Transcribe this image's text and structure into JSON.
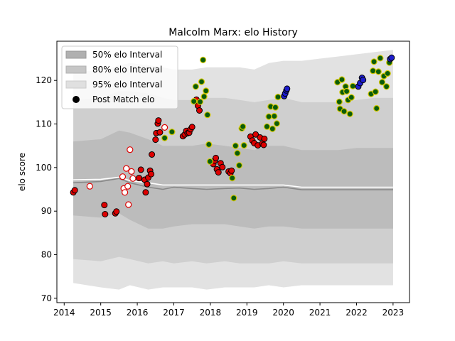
{
  "chart_data": {
    "type": "scatter",
    "title": "Malcolm Marx: elo History",
    "xlabel": "",
    "ylabel": "elo score",
    "xlim": [
      2013.8,
      2023.45
    ],
    "ylim": [
      69,
      129
    ],
    "x_ticks": [
      2014,
      2015,
      2016,
      2017,
      2018,
      2019,
      2020,
      2021,
      2022,
      2023
    ],
    "y_ticks": [
      70,
      80,
      90,
      100,
      110,
      120
    ],
    "legend": {
      "placement": "top-left",
      "entries": [
        "50% elo Interval",
        "80% elo Interval",
        "95% elo Interval",
        "Post Match elo"
      ]
    },
    "colors": {
      "band95": "#e2e2e2",
      "band80": "#cfcfcf",
      "band50": "#bcbcbc",
      "mean_line": "#ffffff",
      "median_line": "#888888",
      "red": "#dd0000",
      "green": "#0a5c0a",
      "green_edge": "#d4c800",
      "blue": "#1c1ccc",
      "open_edge": "#dd0000"
    },
    "bands": {
      "x": [
        2014.25,
        2015.0,
        2015.5,
        2015.8,
        2016.3,
        2016.7,
        2017.0,
        2017.5,
        2017.9,
        2018.4,
        2018.8,
        2019.2,
        2019.6,
        2020.0,
        2020.5,
        2021.0,
        2021.5,
        2022.0,
        2022.5,
        2023.0
      ],
      "p95_hi": [
        122.5,
        122.0,
        123.5,
        124.0,
        123.5,
        123.0,
        122.5,
        122.5,
        123.0,
        123.0,
        123.0,
        122.5,
        124.0,
        124.5,
        124.5,
        125.0,
        125.5,
        126.0,
        126.5,
        127.0
      ],
      "p80_hi": [
        115.5,
        116.0,
        117.5,
        117.5,
        117.0,
        116.0,
        115.5,
        115.5,
        116.0,
        116.0,
        115.5,
        115.0,
        115.5,
        116.0,
        115.0,
        115.0,
        115.0,
        115.5,
        116.0,
        116.0
      ],
      "p50_hi": [
        106.0,
        106.5,
        108.5,
        108.0,
        106.5,
        105.0,
        105.0,
        105.0,
        105.5,
        105.0,
        104.5,
        104.0,
        105.0,
        105.0,
        104.0,
        104.0,
        104.0,
        104.5,
        104.5,
        104.5
      ],
      "p50_lo": [
        89.0,
        88.5,
        89.5,
        88.0,
        86.0,
        86.0,
        86.5,
        87.0,
        87.0,
        87.0,
        86.5,
        86.0,
        86.5,
        86.5,
        86.0,
        86.0,
        86.0,
        86.0,
        86.0,
        86.0
      ],
      "p80_lo": [
        79.0,
        78.5,
        79.5,
        79.0,
        78.0,
        78.5,
        78.0,
        78.5,
        78.0,
        78.5,
        78.0,
        78.0,
        78.0,
        78.5,
        78.0,
        78.0,
        78.0,
        78.0,
        78.0,
        78.0
      ],
      "p95_lo": [
        73.5,
        72.5,
        72.0,
        73.0,
        72.0,
        72.5,
        72.5,
        72.5,
        72.0,
        72.5,
        72.5,
        72.5,
        73.0,
        72.5,
        73.0,
        73.0,
        73.0,
        73.0,
        73.0,
        73.0
      ],
      "mean": [
        97.2,
        97.3,
        97.8,
        97.0,
        96.5,
        96.0,
        96.0,
        96.0,
        96.0,
        96.0,
        96.0,
        96.0,
        96.0,
        96.0,
        95.5,
        95.5,
        95.5,
        95.5,
        95.5,
        95.5
      ],
      "median": [
        96.5,
        96.8,
        97.5,
        96.5,
        95.5,
        95.0,
        95.5,
        95.2,
        95.0,
        95.2,
        95.3,
        95.0,
        95.2,
        95.5,
        94.9,
        94.9,
        94.9,
        94.9,
        94.9,
        94.9
      ]
    },
    "series": [
      {
        "name": "Post Match elo",
        "style": "red",
        "points": [
          [
            2014.25,
            94.3
          ],
          [
            2014.29,
            94.8
          ],
          [
            2015.1,
            91.4
          ],
          [
            2015.12,
            89.3
          ],
          [
            2015.4,
            89.5
          ],
          [
            2015.43,
            89.9
          ],
          [
            2016.05,
            97.6
          ],
          [
            2016.1,
            99.5
          ],
          [
            2016.2,
            97.2
          ],
          [
            2016.23,
            94.3
          ],
          [
            2016.27,
            96.2
          ],
          [
            2016.3,
            97.7
          ],
          [
            2016.35,
            99.3
          ],
          [
            2016.38,
            98.5
          ],
          [
            2016.4,
            103.0
          ],
          [
            2016.5,
            106.4
          ],
          [
            2016.52,
            107.9
          ],
          [
            2016.56,
            110.1
          ],
          [
            2016.58,
            110.8
          ],
          [
            2016.62,
            108.1
          ],
          [
            2017.25,
            107.2
          ],
          [
            2017.3,
            107.6
          ],
          [
            2017.34,
            108.4
          ],
          [
            2017.38,
            107.9
          ],
          [
            2017.42,
            108.0
          ],
          [
            2017.46,
            108.8
          ],
          [
            2017.5,
            109.3
          ],
          [
            2017.62,
            115.6
          ],
          [
            2017.66,
            114.2
          ],
          [
            2017.7,
            113.1
          ],
          [
            2018.08,
            100.8
          ],
          [
            2018.12,
            101.6
          ],
          [
            2018.15,
            102.2
          ],
          [
            2018.18,
            99.6
          ],
          [
            2018.22,
            98.9
          ],
          [
            2018.28,
            101.0
          ],
          [
            2018.33,
            100.1
          ],
          [
            2018.5,
            99.1
          ],
          [
            2018.55,
            98.7
          ],
          [
            2018.58,
            99.3
          ],
          [
            2019.1,
            107.1
          ],
          [
            2019.15,
            106.2
          ],
          [
            2019.2,
            105.6
          ],
          [
            2019.24,
            107.6
          ],
          [
            2019.3,
            105.1
          ],
          [
            2019.36,
            106.9
          ],
          [
            2019.42,
            105.5
          ],
          [
            2019.46,
            105.2
          ],
          [
            2019.48,
            106.6
          ]
        ]
      },
      {
        "name": "",
        "style": "open",
        "points": [
          [
            2014.7,
            95.7
          ],
          [
            2015.6,
            97.9
          ],
          [
            2015.63,
            95.2
          ],
          [
            2015.66,
            94.3
          ],
          [
            2015.7,
            99.8
          ],
          [
            2015.74,
            95.7
          ],
          [
            2015.76,
            91.5
          ],
          [
            2015.8,
            104.1
          ],
          [
            2015.84,
            99.1
          ],
          [
            2015.88,
            97.5
          ],
          [
            2016.75,
            109.2
          ]
        ]
      },
      {
        "name": "",
        "style": "green",
        "points": [
          [
            2016.75,
            106.8
          ],
          [
            2016.95,
            108.2
          ],
          [
            2017.55,
            115.2
          ],
          [
            2017.6,
            118.6
          ],
          [
            2017.72,
            115.1
          ],
          [
            2017.76,
            119.7
          ],
          [
            2017.8,
            124.7
          ],
          [
            2017.83,
            116.3
          ],
          [
            2017.88,
            117.6
          ],
          [
            2017.92,
            112.1
          ],
          [
            2017.96,
            105.3
          ],
          [
            2017.99,
            101.4
          ],
          [
            2018.6,
            97.6
          ],
          [
            2018.64,
            93.0
          ],
          [
            2018.69,
            105.0
          ],
          [
            2018.74,
            103.3
          ],
          [
            2018.79,
            100.5
          ],
          [
            2018.86,
            109.0
          ],
          [
            2018.89,
            109.4
          ],
          [
            2018.92,
            105.1
          ],
          [
            2019.55,
            109.4
          ],
          [
            2019.6,
            111.7
          ],
          [
            2019.65,
            114.0
          ],
          [
            2019.7,
            108.9
          ],
          [
            2019.75,
            111.8
          ],
          [
            2019.78,
            113.8
          ],
          [
            2019.82,
            110.1
          ],
          [
            2019.85,
            116.2
          ],
          [
            2021.48,
            119.6
          ],
          [
            2021.53,
            115.1
          ],
          [
            2021.55,
            113.5
          ],
          [
            2021.6,
            120.2
          ],
          [
            2021.62,
            117.3
          ],
          [
            2021.66,
            112.9
          ],
          [
            2021.7,
            118.6
          ],
          [
            2021.73,
            117.5
          ],
          [
            2021.77,
            115.5
          ],
          [
            2021.82,
            112.3
          ],
          [
            2021.86,
            116.1
          ],
          [
            2021.9,
            118.7
          ],
          [
            2022.4,
            116.9
          ],
          [
            2022.45,
            122.2
          ],
          [
            2022.48,
            124.3
          ],
          [
            2022.52,
            117.4
          ],
          [
            2022.55,
            113.6
          ],
          [
            2022.6,
            122.0
          ],
          [
            2022.65,
            125.1
          ],
          [
            2022.7,
            119.6
          ],
          [
            2022.75,
            121.0
          ],
          [
            2022.82,
            118.6
          ],
          [
            2022.85,
            121.6
          ],
          [
            2022.9,
            124.1
          ]
        ]
      },
      {
        "name": "",
        "style": "blue",
        "points": [
          [
            2020.02,
            116.4
          ],
          [
            2020.05,
            117.0
          ],
          [
            2020.08,
            117.7
          ],
          [
            2020.1,
            118.1
          ],
          [
            2022.05,
            118.6
          ],
          [
            2022.1,
            119.4
          ],
          [
            2022.15,
            120.6
          ],
          [
            2022.18,
            120.1
          ],
          [
            2022.92,
            124.9
          ],
          [
            2022.96,
            125.2
          ]
        ]
      }
    ]
  }
}
